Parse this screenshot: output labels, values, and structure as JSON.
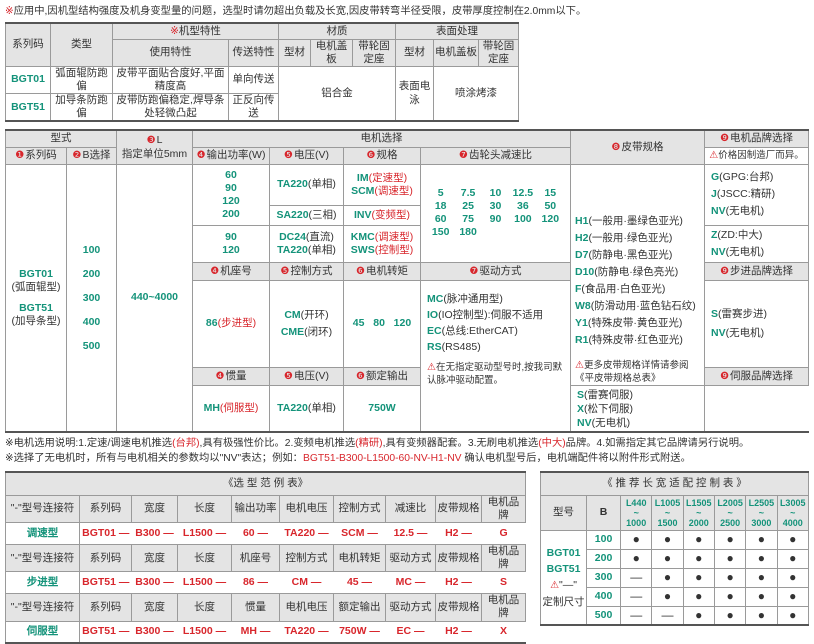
{
  "top_note": {
    "mark": "※",
    "text": "应用中,因机型结构强度及机身变型量的问题，选型时请勿超出负载及长宽,因皮带转弯半径受限，皮带厚度控制在2.0mm以下。"
  },
  "t1": {
    "h_series": "系列码",
    "h_type": "类型",
    "h_feature_mark": "※",
    "h_feature": "机型特性",
    "h_material": "材质",
    "h_surface": "表面处理",
    "h_use": "使用特性",
    "h_transfer": "传送特性",
    "h_profile": "型材",
    "h_cover": "电机盖板",
    "h_seat": "带轮固定座",
    "rows": [
      {
        "code": "BGT01",
        "type": "弧面辊防跑偏",
        "use": "皮带平面贴合度好,平面精度高",
        "transfer": "单向传送"
      },
      {
        "code": "BGT51",
        "type": "加导条防跑偏",
        "use": "皮带防跑偏稳定,焊导条处轻微凸起",
        "transfer": "正反向传送"
      }
    ],
    "material": "铝合金",
    "surface_profile": "表面电泳",
    "surface_other": "喷涂烤漆"
  },
  "t2": {
    "h_form": "型式",
    "h_series": {
      "n": "❶",
      "t": "系列码"
    },
    "h_b": {
      "n": "❷",
      "t": "B选择"
    },
    "h_l": {
      "n": "❸",
      "t": "L"
    },
    "h_l_unit": "指定单位5mm",
    "h_motor": "电机选择",
    "h_power": {
      "n": "❹",
      "t": "输出功率(W)"
    },
    "h_volt": {
      "n": "❺",
      "t": "电压(V)"
    },
    "h_spec": {
      "n": "❻",
      "t": "规格"
    },
    "h_ratio": {
      "n": "❼",
      "t": "齿轮头减速比"
    },
    "h_belt": {
      "n": "❽",
      "t": "皮带规格"
    },
    "h_brand": {
      "n": "❾",
      "t": "电机品牌选择"
    },
    "brand_note": "价格因制造厂而异。",
    "series": [
      {
        "code": "BGT01",
        "desc": "(弧面辊型)"
      },
      {
        "code": "BGT51",
        "desc": "(加导条型)"
      }
    ],
    "b_values": [
      "100",
      "200",
      "300",
      "400",
      "500"
    ],
    "l_range": "440~4000",
    "powers_a": "60\n90\n120\n200",
    "powers_b": "90\n120",
    "volt_a1": {
      "c": "TA220",
      "d": "(单相)"
    },
    "volt_a2": {
      "c": "SA220",
      "d": "(三相)"
    },
    "volt_b1": {
      "c": "DC24",
      "d": "(直流)"
    },
    "volt_b2": {
      "c": "TA220",
      "d": "(单相)"
    },
    "spec_a1": {
      "c": "IM",
      "d": "(定速型)"
    },
    "spec_a2": {
      "c": "SCM",
      "d": "(调速型)"
    },
    "spec_a3": {
      "c": "INV",
      "d": "(变频型)"
    },
    "spec_b1": {
      "c": "KMC",
      "d": "(调速型)"
    },
    "spec_b2": {
      "c": "SWS",
      "d": "(控制型)"
    },
    "ratios": [
      "5",
      "7.5",
      "10",
      "12.5",
      "15",
      "18",
      "25",
      "30",
      "36",
      "50",
      "60",
      "75",
      "90",
      "100",
      "120",
      "150",
      "180"
    ],
    "belts": [
      {
        "c": "H1",
        "d": "(一般用·墨绿色亚光)"
      },
      {
        "c": "H2",
        "d": "(一般用·绿色亚光)"
      },
      {
        "c": "D7",
        "d": "(防静电·黑色亚光)"
      },
      {
        "c": "D10",
        "d": "(防静电·绿色亮光)"
      },
      {
        "c": "F",
        "d": "(食品用·白色亚光)"
      },
      {
        "c": "W8",
        "d": "(防滑动用·蓝色钻石纹)"
      },
      {
        "c": "Y1",
        "d": "(特殊皮带·黄色亚光)"
      },
      {
        "c": "R1",
        "d": "(特殊皮带·红色亚光)"
      }
    ],
    "belt_note": "更多皮带规格详情请参阅《平皮带规格总表》",
    "brands_a": [
      {
        "c": "G",
        "d": "(GPG:台邦)"
      },
      {
        "c": "J",
        "d": "(JSCC:精研)"
      },
      {
        "c": "NV",
        "d": "(无电机)"
      }
    ],
    "brands_b": [
      {
        "c": "Z",
        "d": "(ZD:中大)"
      },
      {
        "c": "NV",
        "d": "(无电机)"
      }
    ],
    "h_frame": {
      "n": "❹",
      "t": "机座号"
    },
    "h_control": {
      "n": "❺",
      "t": "控制方式"
    },
    "h_torque": {
      "n": "❻",
      "t": "电机转矩"
    },
    "h_drive": {
      "n": "❼",
      "t": "驱动方式"
    },
    "h_step_brand": {
      "n": "❾",
      "t": "步进品牌选择"
    },
    "frame": {
      "c": "86",
      "d": "(步进型)"
    },
    "control1": {
      "c": "CM",
      "d": "(开环)"
    },
    "control2": {
      "c": "CME",
      "d": "(闭环)"
    },
    "torque": "45   80   120",
    "drives": [
      {
        "c": "MC",
        "d": "(脉冲通用型)"
      },
      {
        "c": "IO",
        "d": "(IO控制型):伺服不适用"
      },
      {
        "c": "EC",
        "d": "(总线:EtherCAT)"
      },
      {
        "c": "RS",
        "d": "(RS485)"
      }
    ],
    "drive_note": "在无指定驱动型号时,按我司默认脉冲驱动配置。",
    "step_brands": [
      {
        "c": "S",
        "d": "(雷赛步进)"
      },
      {
        "c": "NV",
        "d": "(无电机)"
      }
    ],
    "h_inertia": {
      "n": "❹",
      "t": "惯量"
    },
    "h_volt2": {
      "n": "❺",
      "t": "电压(V)"
    },
    "h_rated": {
      "n": "❻",
      "t": "额定输出"
    },
    "h_servo_brand": {
      "n": "❾",
      "t": "伺服品牌选择"
    },
    "inertia": {
      "c": "MH",
      "d": "(伺服型)"
    },
    "volt2": {
      "c": "TA220",
      "d": "(单相)"
    },
    "rated": "750W",
    "servo_brands": [
      {
        "c": "S",
        "d": "(雷赛伺服)"
      },
      {
        "c": "X",
        "d": "(松下伺服)"
      },
      {
        "c": "NV",
        "d": "(无电机)"
      }
    ]
  },
  "notes": {
    "n1": {
      "a": "※电机选用说明:1.定速/调速电机推选",
      "b": "(台邦)",
      "c": ",具有极强性价比。2.变频电机推选",
      "d": "(精研)",
      "e": ",具有变频器配套。3.无刷电机推选",
      "f": "(中大)",
      "g": "品牌。4.如需指定其它品牌请另行说明。"
    },
    "n2": {
      "a": "※选择了无电机时，所有与电机相关的参数均以\"NV\"表达；例如：",
      "b": "BGT51-B300-L1500-60-NV-H1-NV",
      "c": "  确认电机型号后，电机端配件将以附件形式附送。"
    }
  },
  "example": {
    "title": "《选 型 范 例 表》",
    "blocks": [
      {
        "header": [
          "\"-\"型号连接符",
          "系列码",
          "宽度",
          "长度",
          "输出功率",
          "电机电压",
          "控制方式",
          "减速比",
          "皮带规格",
          "电机品牌"
        ],
        "name": "调速型",
        "values": [
          "BGT01",
          "B300",
          "L1500",
          "60",
          "TA220",
          "SCM",
          "12.5",
          "H2",
          "G"
        ]
      },
      {
        "header": [
          "\"-\"型号连接符",
          "系列码",
          "宽度",
          "长度",
          "机座号",
          "控制方式",
          "电机转矩",
          "驱动方式",
          "皮带规格",
          "电机品牌"
        ],
        "name": "步进型",
        "values": [
          "BGT51",
          "B300",
          "L1500",
          "86",
          "CM",
          "45",
          "MC",
          "H2",
          "S"
        ]
      },
      {
        "header": [
          "\"-\"型号连接符",
          "系列码",
          "宽度",
          "长度",
          "惯量",
          "电机电压",
          "额定输出",
          "驱动方式",
          "皮带规格",
          "电机品牌"
        ],
        "name": "伺服型",
        "values": [
          "BGT51",
          "B300",
          "L1500",
          "MH",
          "TA220",
          "750W",
          "EC",
          "H2",
          "X"
        ]
      }
    ]
  },
  "match": {
    "title": "《 推 荐 长 宽 适 配 控 制 表 》",
    "h_model": "型号",
    "h_b": "B",
    "ranges": [
      [
        "L440",
        "1000"
      ],
      [
        "L1005",
        "1500"
      ],
      [
        "L1505",
        "2000"
      ],
      [
        "L2005",
        "2500"
      ],
      [
        "L2505",
        "3000"
      ],
      [
        "L3005",
        "4000"
      ]
    ],
    "models": [
      "BGT01",
      "BGT51"
    ],
    "custom_mark": "\"—\"",
    "custom_label": "定制尺寸",
    "rows": [
      {
        "b": "100",
        "v": [
          "●",
          "●",
          "●",
          "●",
          "●",
          "●"
        ]
      },
      {
        "b": "200",
        "v": [
          "●",
          "●",
          "●",
          "●",
          "●",
          "●"
        ]
      },
      {
        "b": "300",
        "v": [
          "—",
          "●",
          "●",
          "●",
          "●",
          "●"
        ]
      },
      {
        "b": "400",
        "v": [
          "—",
          "●",
          "●",
          "●",
          "●",
          "●"
        ]
      },
      {
        "b": "500",
        "v": [
          "—",
          "—",
          "●",
          "●",
          "●",
          "●"
        ]
      }
    ]
  },
  "colors": {
    "accent_green": "#14937a",
    "accent_red": "#d8262c",
    "header_gray": "#e4e4e4"
  }
}
